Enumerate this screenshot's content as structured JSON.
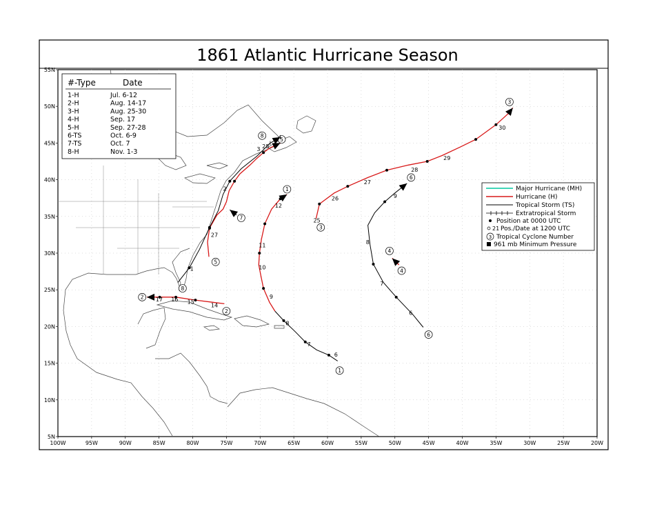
{
  "title": "1861 Atlantic Hurricane Season",
  "map": {
    "lon_range": [
      -100,
      -20
    ],
    "lat_range": [
      5,
      55
    ],
    "lon_ticks": [
      "100W",
      "95W",
      "90W",
      "85W",
      "80W",
      "75W",
      "70W",
      "65W",
      "60W",
      "55W",
      "50W",
      "45W",
      "40W",
      "35W",
      "30W",
      "25W",
      "20W"
    ],
    "lat_ticks": [
      "5N",
      "10N",
      "15N",
      "20N",
      "25N",
      "30N",
      "35N",
      "40N",
      "45N",
      "50N",
      "55N"
    ]
  },
  "season_table": {
    "header_type": "#-Type",
    "header_date": "Date",
    "rows": [
      {
        "type": "1-H",
        "date": "Jul. 6-12"
      },
      {
        "type": "2-H",
        "date": "Aug. 14-17"
      },
      {
        "type": "3-H",
        "date": "Aug. 25-30"
      },
      {
        "type": "4-H",
        "date": "Sep. 17"
      },
      {
        "type": "5-H",
        "date": "Sep. 27-28"
      },
      {
        "type": "6-TS",
        "date": "Oct. 6-9"
      },
      {
        "type": "7-TS",
        "date": "Oct. 7"
      },
      {
        "type": "8-H",
        "date": "Nov. 1-3"
      }
    ]
  },
  "legend": {
    "major_hurricane": "Major Hurricane (MH)",
    "hurricane": "Hurricane (H)",
    "tropical_storm": "Tropical Storm (TS)",
    "extratropical": "Extratropical Storm",
    "position_0000": "Position at 0000 UTC",
    "position_1200": "Pos./Date at 1200 UTC",
    "position_1200_example": "21",
    "cyclone_number": "Tropical Cyclone Number",
    "cyclone_number_example": "3",
    "min_pressure": "961 mb  Minimum Pressure",
    "colors": {
      "major": "#00c8a0",
      "hurricane": "#d81818",
      "tropical_storm": "#000000"
    }
  },
  "tracks": [
    {
      "number": "1",
      "start_label": "1",
      "start": [
        -58.2,
        14.0
      ],
      "segments": [
        {
          "cat": "TS",
          "points": [
            [
              -58.5,
              15.3
            ],
            [
              -59.8,
              16.1
            ],
            [
              -61.6,
              16.8
            ],
            [
              -63.3,
              17.9
            ],
            [
              -64.8,
              19.3
            ],
            [
              -66.5,
              20.8
            ],
            [
              -67.8,
              22.1
            ]
          ]
        },
        {
          "cat": "H",
          "points": [
            [
              -67.8,
              22.1
            ],
            [
              -68.6,
              23.3
            ],
            [
              -69.5,
              25.2
            ],
            [
              -69.9,
              27.0
            ],
            [
              -70.2,
              28.4
            ],
            [
              -70.1,
              30.0
            ],
            [
              -69.8,
              31.9
            ],
            [
              -69.3,
              34.0
            ],
            [
              -68.3,
              36.0
            ],
            [
              -67.0,
              37.4
            ],
            [
              -66.0,
              38.0
            ]
          ]
        }
      ],
      "dots": [
        [
          -59.8,
          16.1
        ],
        [
          -63.3,
          17.9
        ],
        [
          -66.5,
          20.8
        ],
        [
          -69.5,
          25.2
        ],
        [
          -70.1,
          30.0
        ],
        [
          -69.3,
          34.0
        ],
        [
          -67.0,
          37.4
        ]
      ],
      "date_labels": [
        {
          "text": "6",
          "at": [
            -59.0,
            15.9
          ]
        },
        {
          "text": "7",
          "at": [
            -63.0,
            17.3
          ]
        },
        {
          "text": "8",
          "at": [
            -66.2,
            20.2
          ]
        },
        {
          "text": "9",
          "at": [
            -68.6,
            23.8
          ]
        },
        {
          "text": "10",
          "at": [
            -70.2,
            27.8
          ]
        },
        {
          "text": "11",
          "at": [
            -70.2,
            30.8
          ]
        },
        {
          "text": "12",
          "at": [
            -67.8,
            36.2
          ]
        }
      ],
      "end_label": "1",
      "end_label_at": [
        -66.0,
        38.7
      ]
    },
    {
      "number": "2",
      "start_label": "2",
      "start": [
        -75.0,
        22.1
      ],
      "segments": [
        {
          "cat": "H",
          "points": [
            [
              -75.3,
              23.1
            ],
            [
              -77.0,
              23.3
            ],
            [
              -79.6,
              23.6
            ],
            [
              -82.5,
              24.0
            ],
            [
              -84.0,
              24.0
            ],
            [
              -85.6,
              24.0
            ],
            [
              -86.8,
              24.0
            ]
          ]
        }
      ],
      "dots": [
        [
          -79.6,
          23.6
        ],
        [
          -82.5,
          24.0
        ],
        [
          -84.9,
          24.0
        ]
      ],
      "date_labels": [
        {
          "text": "14",
          "at": [
            -77.3,
            22.6
          ]
        },
        {
          "text": "15",
          "at": [
            -80.8,
            23.1
          ]
        },
        {
          "text": "16",
          "at": [
            -83.2,
            23.4
          ]
        },
        {
          "text": "17",
          "at": [
            -85.5,
            23.4
          ]
        }
      ],
      "end_label": "2",
      "end_label_at": [
        -87.5,
        24.0
      ]
    },
    {
      "number": "3",
      "start_label": "3",
      "start": [
        -61.0,
        33.5
      ],
      "segments": [
        {
          "cat": "H",
          "points": [
            [
              -61.7,
              34.7
            ],
            [
              -61.2,
              36.7
            ],
            [
              -59.0,
              38.2
            ],
            [
              -57.0,
              39.1
            ],
            [
              -54.0,
              40.3
            ],
            [
              -51.2,
              41.3
            ],
            [
              -48.0,
              42.0
            ],
            [
              -45.2,
              42.5
            ],
            [
              -43.0,
              43.3
            ],
            [
              -40.2,
              44.5
            ],
            [
              -38.0,
              45.5
            ],
            [
              -35.0,
              47.5
            ],
            [
              -33.2,
              49.0
            ],
            [
              -32.5,
              49.8
            ]
          ]
        }
      ],
      "dots": [
        [
          -61.2,
          36.7
        ],
        [
          -57.0,
          39.1
        ],
        [
          -51.2,
          41.3
        ],
        [
          -45.2,
          42.5
        ],
        [
          -38.0,
          45.5
        ],
        [
          -35.0,
          47.5
        ]
      ],
      "date_labels": [
        {
          "text": "25",
          "at": [
            -62.1,
            34.2
          ]
        },
        {
          "text": "26",
          "at": [
            -59.4,
            37.2
          ]
        },
        {
          "text": "27",
          "at": [
            -54.6,
            39.4
          ]
        },
        {
          "text": "28",
          "at": [
            -47.6,
            41.1
          ]
        },
        {
          "text": "29",
          "at": [
            -42.8,
            42.7
          ]
        },
        {
          "text": "30",
          "at": [
            -34.6,
            46.8
          ]
        }
      ],
      "end_label": "3",
      "end_label_at": [
        -33.0,
        50.6
      ]
    },
    {
      "number": "4",
      "start_label": "4",
      "start": [
        -49.0,
        27.6
      ],
      "segments": [
        {
          "cat": "H",
          "points": [
            [
              -49.4,
              28.4
            ],
            [
              -50.4,
              29.3
            ]
          ]
        }
      ],
      "dots": [],
      "date_labels": [],
      "end_label": "4",
      "end_label_at": [
        -50.8,
        30.3
      ]
    },
    {
      "number": "5",
      "start_label": "5",
      "start": [
        -76.6,
        28.8
      ],
      "segments": [
        {
          "cat": "H",
          "points": [
            [
              -77.6,
              29.5
            ],
            [
              -77.8,
              31.5
            ],
            [
              -77.5,
              33.4
            ],
            [
              -76.4,
              35.2
            ],
            [
              -75.5,
              36.0
            ],
            [
              -75.0,
              37.0
            ],
            [
              -74.6,
              38.5
            ],
            [
              -73.8,
              39.8
            ],
            [
              -73.0,
              40.8
            ],
            [
              -71.5,
              42.0
            ],
            [
              -70.5,
              42.9
            ],
            [
              -69.5,
              43.7
            ],
            [
              -68.6,
              44.3
            ],
            [
              -67.0,
              45.0
            ]
          ]
        }
      ],
      "dots": [
        [
          -77.5,
          33.4
        ],
        [
          -73.8,
          39.8
        ],
        [
          -69.5,
          43.7
        ]
      ],
      "date_labels": [
        {
          "text": "27",
          "at": [
            -77.3,
            32.2
          ]
        },
        {
          "text": "28",
          "at": [
            -69.7,
            44.3
          ]
        }
      ],
      "end_label": "5",
      "end_label_at": [
        -66.8,
        45.5
      ]
    },
    {
      "number": "6",
      "start_label": "6",
      "start": [
        -45.0,
        18.9
      ],
      "segments": [
        {
          "cat": "TS",
          "points": [
            [
              -45.8,
              19.9
            ],
            [
              -47.3,
              21.6
            ],
            [
              -49.8,
              24.0
            ],
            [
              -51.7,
              26.0
            ],
            [
              -53.2,
              28.5
            ],
            [
              -53.7,
              31.2
            ],
            [
              -54.0,
              33.8
            ],
            [
              -53.0,
              35.5
            ],
            [
              -51.5,
              37.0
            ],
            [
              -50.0,
              38.2
            ],
            [
              -48.2,
              39.5
            ]
          ]
        }
      ],
      "dots": [
        [
          -49.8,
          24.0
        ],
        [
          -53.2,
          28.5
        ],
        [
          -51.5,
          37.0
        ]
      ],
      "date_labels": [
        {
          "text": "6",
          "at": [
            -47.9,
            21.6
          ]
        },
        {
          "text": "7",
          "at": [
            -52.2,
            25.6
          ]
        },
        {
          "text": "8",
          "at": [
            -54.3,
            31.2
          ]
        },
        {
          "text": "9",
          "at": [
            -50.2,
            37.5
          ]
        }
      ],
      "end_label": "6",
      "end_label_at": [
        -47.6,
        40.3
      ]
    },
    {
      "number": "7",
      "start_label": "7",
      "start": [
        -72.8,
        34.8
      ],
      "segments": [
        {
          "cat": "TS",
          "points": [
            [
              -73.5,
              35.2
            ],
            [
              -74.5,
              35.9
            ]
          ]
        }
      ],
      "dots": [],
      "date_labels": [],
      "end_label": "",
      "end_label_at": [
        -74.5,
        36.5
      ]
    },
    {
      "number": "8",
      "start_label": "8",
      "start": [
        -81.5,
        25.2
      ],
      "segments": [
        {
          "cat": "TS",
          "points": [
            [
              -82.2,
              26.0
            ],
            [
              -80.5,
              28.0
            ],
            [
              -79.0,
              30.5
            ],
            [
              -77.5,
              33.5
            ],
            [
              -76.2,
              35.8
            ],
            [
              -75.5,
              38.0
            ],
            [
              -74.5,
              39.8
            ],
            [
              -72.8,
              41.5
            ],
            [
              -70.5,
              43.2
            ],
            [
              -68.5,
              45.0
            ]
          ]
        },
        {
          "cat": "EX",
          "points": [
            [
              -68.5,
              45.0
            ],
            [
              -67.0,
              45.8
            ]
          ]
        }
      ],
      "dots": [
        [
          -80.5,
          28.0
        ],
        [
          -77.5,
          33.5
        ],
        [
          -74.5,
          39.8
        ]
      ],
      "date_labels": [
        {
          "text": "1",
          "at": [
            -80.4,
            27.6
          ]
        },
        {
          "text": "2",
          "at": [
            -75.5,
            38.5
          ]
        },
        {
          "text": "3",
          "at": [
            -70.5,
            43.9
          ]
        }
      ],
      "end_label": "8",
      "end_label_at": [
        -69.7,
        46.0
      ]
    }
  ]
}
